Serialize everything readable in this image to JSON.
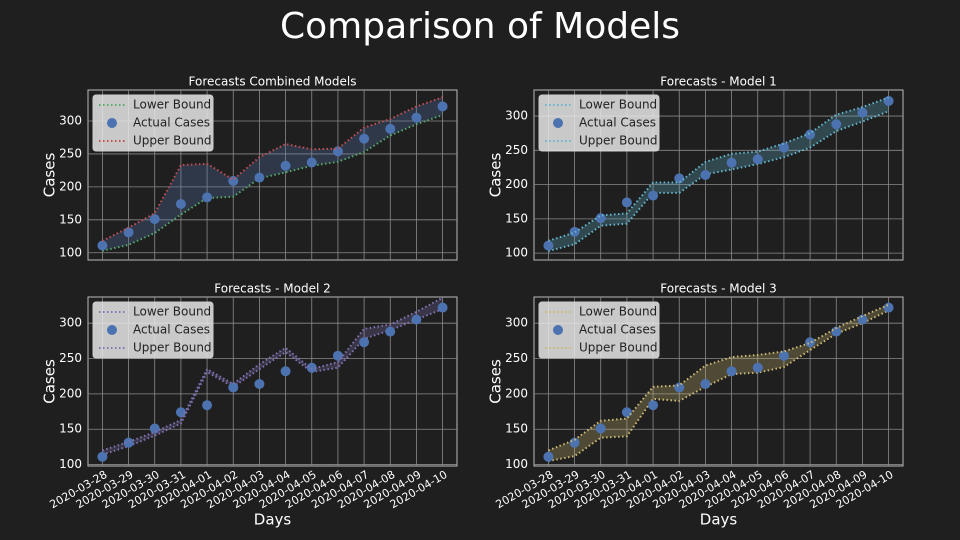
{
  "title": "Comparison of Models",
  "chart_data": [
    {
      "type": "line",
      "title": "Forecasts Combined Models",
      "ylabel": "Cases",
      "x": [
        "2020-03-28",
        "2020-03-29",
        "2020-03-30",
        "2020-03-31",
        "2020-04-01",
        "2020-04-02",
        "2020-04-03",
        "2020-04-04",
        "2020-04-05",
        "2020-04-06",
        "2020-04-07",
        "2020-04-08",
        "2020-04-09",
        "2020-04-10"
      ],
      "ylim": [
        89,
        347
      ],
      "yticks": [
        100,
        150,
        200,
        250,
        300
      ],
      "grid": true,
      "legend": "upper left",
      "band_color": "#5a7bb5",
      "series": [
        {
          "name": "Lower Bound",
          "color": "#55a868",
          "style": "dotted",
          "values": [
            103,
            112,
            130,
            158,
            183,
            185,
            213,
            222,
            232,
            238,
            253,
            278,
            295,
            309
          ]
        },
        {
          "name": "Actual Cases",
          "color": "#4c72b0",
          "style": "marker",
          "values": [
            111,
            131,
            151,
            174,
            184,
            209,
            214,
            232,
            237,
            254,
            273,
            288,
            305,
            322
          ]
        },
        {
          "name": "Upper Bound",
          "color": "#c44e52",
          "style": "dotted",
          "values": [
            118,
            138,
            160,
            233,
            235,
            211,
            245,
            265,
            257,
            258,
            290,
            303,
            322,
            336
          ]
        }
      ]
    },
    {
      "type": "line",
      "title": "Forecasts - Model 1",
      "ylabel": "Cases",
      "x": [
        "2020-03-28",
        "2020-03-29",
        "2020-03-30",
        "2020-03-31",
        "2020-04-01",
        "2020-04-02",
        "2020-04-03",
        "2020-04-04",
        "2020-04-05",
        "2020-04-06",
        "2020-04-07",
        "2020-04-08",
        "2020-04-09",
        "2020-04-10"
      ],
      "ylim": [
        90,
        338
      ],
      "yticks": [
        100,
        150,
        200,
        250,
        300
      ],
      "grid": true,
      "legend": "upper left",
      "band_color": "#64b5cd",
      "series": [
        {
          "name": "Lower Bound",
          "color": "#64b5cd",
          "style": "dotted",
          "values": [
            103,
            113,
            140,
            143,
            188,
            188,
            215,
            222,
            230,
            240,
            254,
            278,
            292,
            307
          ]
        },
        {
          "name": "Actual Cases",
          "color": "#4c72b0",
          "style": "marker",
          "values": [
            111,
            131,
            151,
            174,
            184,
            209,
            214,
            232,
            237,
            254,
            273,
            288,
            305,
            322
          ]
        },
        {
          "name": "Upper Bound",
          "color": "#64b5cd",
          "style": "dotted",
          "values": [
            118,
            130,
            155,
            158,
            203,
            203,
            233,
            245,
            248,
            260,
            275,
            302,
            313,
            327
          ]
        }
      ]
    },
    {
      "type": "line",
      "title": "Forecasts - Model 2",
      "ylabel": "Cases",
      "xlabel": "Days",
      "x": [
        "2020-03-28",
        "2020-03-29",
        "2020-03-30",
        "2020-03-31",
        "2020-04-01",
        "2020-04-02",
        "2020-04-03",
        "2020-04-04",
        "2020-04-05",
        "2020-04-06",
        "2020-04-07",
        "2020-04-08",
        "2020-04-09",
        "2020-04-10"
      ],
      "ylim": [
        98,
        337
      ],
      "yticks": [
        100,
        150,
        200,
        250,
        300
      ],
      "grid": true,
      "legend": "upper left",
      "band_color": "#8172b2",
      "series": [
        {
          "name": "Lower Bound",
          "color": "#8172b2",
          "style": "dotted",
          "values": [
            114,
            126,
            141,
            158,
            231,
            210,
            235,
            259,
            231,
            237,
            278,
            290,
            305,
            320
          ]
        },
        {
          "name": "Actual Cases",
          "color": "#4c72b0",
          "style": "marker",
          "values": [
            111,
            131,
            151,
            174,
            184,
            209,
            214,
            232,
            237,
            254,
            273,
            288,
            305,
            322
          ]
        },
        {
          "name": "Upper Bound",
          "color": "#8172b2",
          "style": "dotted",
          "values": [
            120,
            132,
            146,
            163,
            235,
            214,
            242,
            265,
            235,
            245,
            292,
            298,
            316,
            336
          ]
        }
      ]
    },
    {
      "type": "line",
      "title": "Forecasts - Model 3",
      "ylabel": "Cases",
      "xlabel": "Days",
      "x": [
        "2020-03-28",
        "2020-03-29",
        "2020-03-30",
        "2020-03-31",
        "2020-04-01",
        "2020-04-02",
        "2020-04-03",
        "2020-04-04",
        "2020-04-05",
        "2020-04-06",
        "2020-04-07",
        "2020-04-08",
        "2020-04-09",
        "2020-04-10"
      ],
      "ylim": [
        98,
        337
      ],
      "yticks": [
        100,
        150,
        200,
        250,
        300
      ],
      "grid": true,
      "legend": "upper left",
      "band_color": "#ccb974",
      "series": [
        {
          "name": "Lower Bound",
          "color": "#ccb974",
          "style": "dotted",
          "values": [
            105,
            112,
            138,
            140,
            193,
            190,
            210,
            228,
            230,
            238,
            262,
            285,
            300,
            318
          ]
        },
        {
          "name": "Actual Cases",
          "color": "#4c72b0",
          "style": "marker",
          "values": [
            111,
            131,
            151,
            174,
            184,
            209,
            214,
            232,
            237,
            254,
            273,
            288,
            305,
            322
          ]
        },
        {
          "name": "Upper Bound",
          "color": "#ccb974",
          "style": "dotted",
          "values": [
            120,
            135,
            162,
            165,
            210,
            212,
            240,
            252,
            255,
            260,
            272,
            293,
            310,
            326
          ]
        }
      ]
    }
  ]
}
